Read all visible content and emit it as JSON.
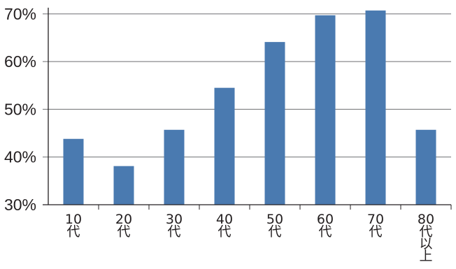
{
  "chart_data": {
    "type": "bar",
    "categories": [
      "10代",
      "20代",
      "30代",
      "40代",
      "50代",
      "60代",
      "70代",
      "80代以上"
    ],
    "category_label_lines": [
      [
        "10",
        "代"
      ],
      [
        "20",
        "代"
      ],
      [
        "30",
        "代"
      ],
      [
        "40",
        "代"
      ],
      [
        "50",
        "代"
      ],
      [
        "60",
        "代"
      ],
      [
        "70",
        "代"
      ],
      [
        "80",
        "代",
        "以",
        "上"
      ]
    ],
    "values": [
      43.8,
      38.1,
      45.7,
      54.5,
      64.1,
      69.7,
      70.7,
      45.7
    ],
    "y_ticks": [
      "30%",
      "40%",
      "50%",
      "60%",
      "70%"
    ],
    "y_tick_values": [
      30,
      40,
      50,
      60,
      70
    ],
    "ylim": [
      30,
      71
    ],
    "title": "",
    "xlabel": "",
    "ylabel": "",
    "grid": true,
    "legend": "none",
    "colors": {
      "bar": "#4a7ab0",
      "grid": "#6d6e71",
      "axis": "#231f20",
      "text": "#231f20"
    }
  }
}
